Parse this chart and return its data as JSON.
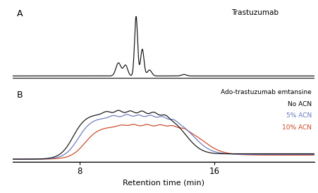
{
  "xlim": [
    4,
    22
  ],
  "xticks": [
    8,
    16
  ],
  "xlabel": "Retention time (min)",
  "panel_A_label": "A",
  "panel_B_label": "B",
  "panel_A_title": "Trastuzumab",
  "panel_B_title": "Ado-trastuzumab emtansine",
  "legend_no_acn": "No ACN",
  "legend_5pct": "5% ACN",
  "legend_10pct": "10% ACN",
  "color_black": "#111111",
  "color_blue": "#6677bb",
  "color_red": "#cc4422",
  "bg_color": "#ffffff"
}
